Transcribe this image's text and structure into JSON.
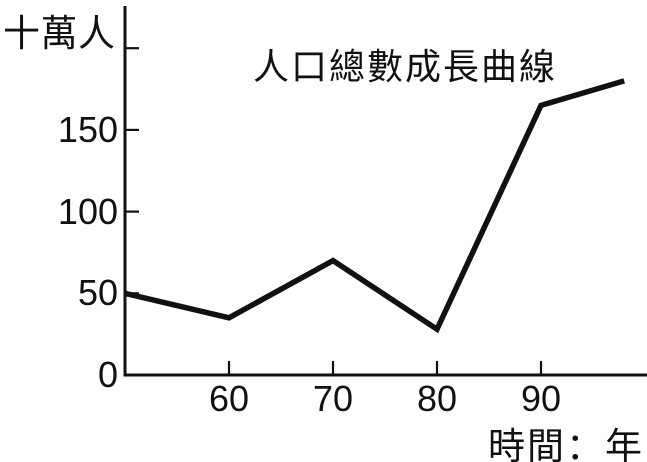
{
  "chart": {
    "title": "人口總數成長曲線",
    "y_axis_unit_label": "十萬人",
    "x_axis_unit_label": "時間：年"
  },
  "chart_data": {
    "type": "line",
    "title": "人口總數成長曲線",
    "ylabel": "十萬人",
    "xlabel": "時間：年",
    "x": [
      50,
      60,
      70,
      80,
      90,
      98
    ],
    "values": [
      50,
      35,
      70,
      28,
      165,
      180
    ],
    "x_ticks": [
      60,
      70,
      80,
      90
    ],
    "y_ticks": [
      0,
      50,
      100,
      150
    ],
    "unlabeled_y_ticks": [
      200
    ],
    "xlim": [
      50,
      100
    ],
    "ylim": [
      0,
      226
    ],
    "grid": false,
    "legend": false,
    "line_color": "#111111",
    "axis_color": "#111111",
    "background": "#ffffff",
    "line_width": 5.5
  }
}
